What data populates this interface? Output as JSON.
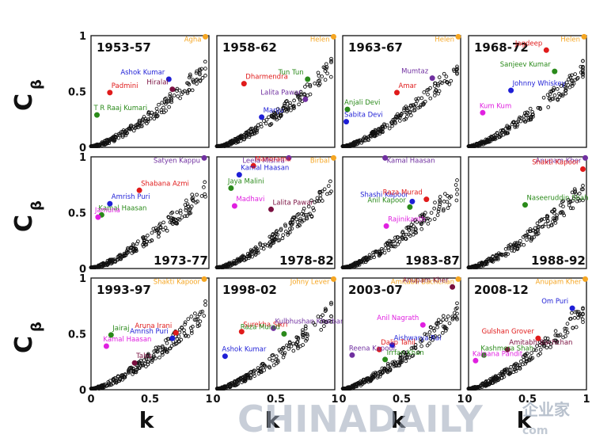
{
  "chart_data": {
    "type": "scatter",
    "xlabel": "k",
    "ylabel": "C",
    "ylabel_sub": "β",
    "xlim": [
      0,
      1
    ],
    "ylim": [
      0,
      1
    ],
    "xticks": [
      "0",
      "0.5",
      "1"
    ],
    "yticks": [
      "0",
      "0.5",
      "1"
    ],
    "marker": "open-circle",
    "label_colors": {
      "orange": "#f5a623",
      "blue": "#1f1fd6",
      "red": "#e01b1b",
      "darkred": "#7a1040",
      "green": "#2a8a1a",
      "purple": "#7030a0",
      "magenta": "#e020e0"
    },
    "panels": [
      {
        "period": "1953-57",
        "title_pos": "top",
        "highlighted": [
          {
            "name": "Agha",
            "x": 0.97,
            "y": 0.99,
            "color": "orange"
          },
          {
            "name": "Ashok Kumar",
            "x": 0.66,
            "y": 0.61,
            "color": "blue"
          },
          {
            "name": "Padmini",
            "x": 0.16,
            "y": 0.49,
            "color": "red"
          },
          {
            "name": "Hiralal",
            "x": 0.69,
            "y": 0.52,
            "color": "darkred"
          },
          {
            "name": "T R Raaj Kumari",
            "x": 0.05,
            "y": 0.29,
            "color": "green"
          }
        ]
      },
      {
        "period": "1958-62",
        "title_pos": "top",
        "highlighted": [
          {
            "name": "Helen",
            "x": 0.99,
            "y": 0.99,
            "color": "orange"
          },
          {
            "name": "Tun Tun",
            "x": 0.77,
            "y": 0.61,
            "color": "green"
          },
          {
            "name": "Dharmendra",
            "x": 0.23,
            "y": 0.57,
            "color": "red"
          },
          {
            "name": "Lalita Pawar",
            "x": 0.75,
            "y": 0.43,
            "color": "purple"
          },
          {
            "name": "Manju",
            "x": 0.38,
            "y": 0.27,
            "color": "blue"
          }
        ]
      },
      {
        "period": "1963-67",
        "title_pos": "top",
        "highlighted": [
          {
            "name": "Helen",
            "x": 0.98,
            "y": 0.99,
            "color": "orange"
          },
          {
            "name": "Mumtaz",
            "x": 0.76,
            "y": 0.62,
            "color": "purple"
          },
          {
            "name": "Amar",
            "x": 0.46,
            "y": 0.49,
            "color": "red"
          },
          {
            "name": "Anjali Devi",
            "x": 0.04,
            "y": 0.34,
            "color": "green"
          },
          {
            "name": "Sabita Devi",
            "x": 0.03,
            "y": 0.23,
            "color": "blue"
          }
        ]
      },
      {
        "period": "1968-72",
        "title_pos": "top",
        "highlighted": [
          {
            "name": "Helen",
            "x": 0.98,
            "y": 0.99,
            "color": "orange"
          },
          {
            "name": "Jagdeep",
            "x": 0.66,
            "y": 0.87,
            "color": "red"
          },
          {
            "name": "Sanjeev Kumar",
            "x": 0.73,
            "y": 0.68,
            "color": "green"
          },
          {
            "name": "Johnny Whiskey",
            "x": 0.36,
            "y": 0.51,
            "color": "blue"
          },
          {
            "name": "Kum Kum",
            "x": 0.12,
            "y": 0.31,
            "color": "magenta"
          }
        ]
      },
      {
        "period": "1973-77",
        "title_pos": "bottom",
        "highlighted": [
          {
            "name": "Satyen Kappu",
            "x": 0.96,
            "y": 0.99,
            "color": "purple"
          },
          {
            "name": "Shabana Azmi",
            "x": 0.41,
            "y": 0.7,
            "color": "red"
          },
          {
            "name": "Amrish Puri",
            "x": 0.16,
            "y": 0.58,
            "color": "blue"
          },
          {
            "name": "Kamal Haasan",
            "x": 0.09,
            "y": 0.48,
            "color": "green"
          },
          {
            "name": "Jamuna",
            "x": 0.06,
            "y": 0.46,
            "color": "magenta"
          }
        ]
      },
      {
        "period": "1978-82",
        "title_pos": "bottom",
        "highlighted": [
          {
            "name": "Birbal",
            "x": 0.99,
            "y": 0.99,
            "color": "orange"
          },
          {
            "name": "Leela Mishra",
            "x": 0.61,
            "y": 0.99,
            "color": "purple"
          },
          {
            "name": "Manorama",
            "x": 0.31,
            "y": 0.92,
            "color": "red"
          },
          {
            "name": "Kamal Haasan",
            "x": 0.19,
            "y": 0.84,
            "color": "blue"
          },
          {
            "name": "Jaya Malini",
            "x": 0.12,
            "y": 0.72,
            "color": "green"
          },
          {
            "name": "Madhavi",
            "x": 0.15,
            "y": 0.56,
            "color": "magenta"
          },
          {
            "name": "Lalita Pawar",
            "x": 0.46,
            "y": 0.53,
            "color": "darkred"
          }
        ]
      },
      {
        "period": "1983-87",
        "title_pos": "bottom",
        "highlighted": [
          {
            "name": "Kamal Haasan",
            "x": 0.36,
            "y": 0.99,
            "color": "purple"
          },
          {
            "name": "Shashi Kapoor",
            "x": 0.59,
            "y": 0.6,
            "color": "blue"
          },
          {
            "name": "Raza Murad",
            "x": 0.71,
            "y": 0.62,
            "color": "red"
          },
          {
            "name": "Anil Kapoor",
            "x": 0.57,
            "y": 0.55,
            "color": "green"
          },
          {
            "name": "Rajinikanth",
            "x": 0.37,
            "y": 0.38,
            "color": "magenta"
          }
        ]
      },
      {
        "period": "1988-92",
        "title_pos": "bottom",
        "highlighted": [
          {
            "name": "Anupam Kher",
            "x": 0.99,
            "y": 0.99,
            "color": "purple"
          },
          {
            "name": "Shakti Kapoor",
            "x": 0.97,
            "y": 0.89,
            "color": "red"
          },
          {
            "name": "Naseeruddin Shah",
            "x": 0.48,
            "y": 0.57,
            "color": "green"
          }
        ]
      },
      {
        "period": "1993-97",
        "title_pos": "top",
        "highlighted": [
          {
            "name": "Shakti Kapoor",
            "x": 0.96,
            "y": 0.99,
            "color": "orange"
          },
          {
            "name": "Jairaj",
            "x": 0.17,
            "y": 0.49,
            "color": "green"
          },
          {
            "name": "Aruna Irani",
            "x": 0.72,
            "y": 0.51,
            "color": "red"
          },
          {
            "name": "Amrish Puri",
            "x": 0.69,
            "y": 0.46,
            "color": "blue"
          },
          {
            "name": "Kamal Haasan",
            "x": 0.13,
            "y": 0.39,
            "color": "magenta"
          },
          {
            "name": "Tabu",
            "x": 0.37,
            "y": 0.24,
            "color": "darkred"
          }
        ]
      },
      {
        "period": "1998-02",
        "title_pos": "top",
        "highlighted": [
          {
            "name": "Johny Lever",
            "x": 0.99,
            "y": 0.99,
            "color": "orange"
          },
          {
            "name": "Surekha Sikri",
            "x": 0.21,
            "y": 0.52,
            "color": "red"
          },
          {
            "name": "Kulbhushan Kharbanda",
            "x": 0.48,
            "y": 0.55,
            "color": "purple"
          },
          {
            "name": "Raza Murad",
            "x": 0.57,
            "y": 0.5,
            "color": "green"
          },
          {
            "name": "Ashok Kumar",
            "x": 0.07,
            "y": 0.3,
            "color": "blue"
          }
        ]
      },
      {
        "period": "2003-07",
        "title_pos": "top",
        "highlighted": [
          {
            "name": "Amitabh Bachchan",
            "x": 0.98,
            "y": 0.99,
            "color": "orange"
          },
          {
            "name": "Anupam Kher",
            "x": 0.93,
            "y": 0.92,
            "color": "darkred"
          },
          {
            "name": "Anil Nagrath",
            "x": 0.68,
            "y": 0.58,
            "color": "magenta"
          },
          {
            "name": "Aishwarya Rai",
            "x": 0.42,
            "y": 0.4,
            "color": "blue"
          },
          {
            "name": "Dalip Tahil",
            "x": 0.31,
            "y": 0.36,
            "color": "red"
          },
          {
            "name": "Reena Kapoor",
            "x": 0.08,
            "y": 0.31,
            "color": "purple"
          },
          {
            "name": "Irrfan Khan",
            "x": 0.36,
            "y": 0.27,
            "color": "green"
          }
        ]
      },
      {
        "period": "2008-12",
        "title_pos": "top",
        "highlighted": [
          {
            "name": "Anupam Kher",
            "x": 0.99,
            "y": 0.99,
            "color": "orange"
          },
          {
            "name": "Om Puri",
            "x": 0.88,
            "y": 0.73,
            "color": "blue"
          },
          {
            "name": "Gulshan Grover",
            "x": 0.59,
            "y": 0.46,
            "color": "red"
          },
          {
            "name": "Amitabh Bachchan",
            "x": 0.33,
            "y": 0.36,
            "color": "darkred"
          },
          {
            "name": "Kashmera Shah",
            "x": 0.13,
            "y": 0.31,
            "color": "green"
          },
          {
            "name": "Kalpana Pandit",
            "x": 0.06,
            "y": 0.26,
            "color": "magenta"
          }
        ]
      }
    ]
  },
  "watermark": {
    "text": "CHINADAILY",
    "suffix": "com",
    "cn_text": "企业家"
  }
}
